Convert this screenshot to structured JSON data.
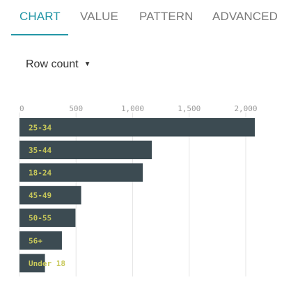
{
  "tabs": [
    {
      "label": "CHART",
      "active": true
    },
    {
      "label": "VALUE",
      "active": false
    },
    {
      "label": "PATTERN",
      "active": false
    },
    {
      "label": "ADVANCED",
      "active": false
    }
  ],
  "measure": {
    "label": "Row count",
    "caret": "▼"
  },
  "colors": {
    "accent": "#2396a6",
    "bar": "#3c4b52",
    "bar_label": "#c8c85a",
    "gridline": "#e6e6e6"
  },
  "chart_data": {
    "type": "bar",
    "orientation": "horizontal",
    "categories": [
      "25-34",
      "35-44",
      "18-24",
      "45-49",
      "50-55",
      "56+",
      "Under 18"
    ],
    "values": [
      2080,
      1170,
      1090,
      545,
      495,
      375,
      225
    ],
    "xlim": [
      0,
      2080
    ],
    "xticks": [
      0,
      500,
      1000,
      1500,
      2000
    ],
    "xtick_labels": [
      "0",
      "500",
      "1,000",
      "1,500",
      "2,000"
    ],
    "grid": true
  }
}
